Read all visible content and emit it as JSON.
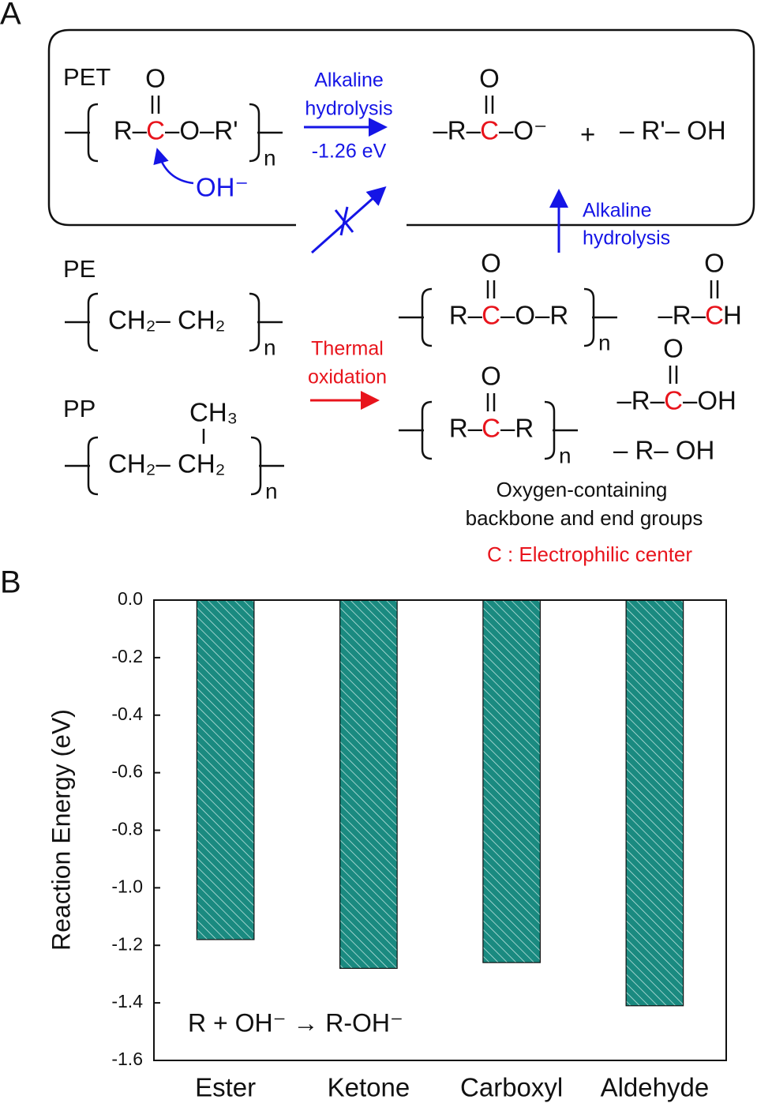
{
  "panel_a": {
    "label": "A",
    "pet": {
      "label": "PET",
      "chain": [
        "R–",
        "C",
        "–O–R'"
      ],
      "carbonyl": "O",
      "repeat": "n",
      "attack": "OH⁻"
    },
    "hydrolysis": {
      "lines": [
        "Alkaline",
        "hydrolysis"
      ],
      "energy": "-1.26 eV"
    },
    "products": {
      "carboxylate": [
        "–R–",
        "C",
        "–O⁻"
      ],
      "carbonyl": "O",
      "plus": "+",
      "alcohol": "– R'– OH"
    },
    "pe": {
      "label": "PE",
      "chain": "CH₂– CH₂",
      "repeat": "n"
    },
    "pp": {
      "label": "PP",
      "chain": "CH₂– CH₂",
      "methyl": "CH₃",
      "repeat": "n"
    },
    "oxidation": {
      "lines": [
        "Thermal",
        "oxidation"
      ]
    },
    "second_hydrolysis": {
      "lines": [
        "Alkaline",
        "hydrolysis"
      ]
    },
    "oxidized": {
      "ester": {
        "chain": [
          "R–",
          "C",
          "–O–R"
        ],
        "carbonyl": "O",
        "repeat": "n"
      },
      "aldehyde": {
        "chain": [
          "–R–",
          "C",
          "H"
        ],
        "carbonyl": "O"
      },
      "carboxyl": {
        "chain": [
          "–R–",
          "C",
          "–OH"
        ],
        "carbonyl": "O"
      },
      "ketone": {
        "chain": [
          "R–",
          "C",
          "–R"
        ],
        "carbonyl": "O",
        "repeat": "n"
      },
      "alcohol": "– R– OH",
      "caption": [
        "Oxygen-containing",
        "backbone and end groups"
      ],
      "legend": "C : Electrophilic center"
    }
  },
  "chart_data": {
    "type": "bar",
    "label": "B",
    "ylabel": "Reaction Energy (eV)",
    "annotation": "R + OH⁻ → R-OH⁻",
    "categories": [
      "Ester",
      "Ketone",
      "Carboxyl",
      "Aldehyde"
    ],
    "values": [
      -1.18,
      -1.28,
      -1.26,
      -1.41
    ],
    "color": "#1a8a80",
    "ylim": [
      -1.6,
      0
    ],
    "yticks": [
      {
        "value": 0,
        "label": "0.0"
      },
      -0.2,
      -0.4,
      -0.6,
      -0.8,
      {
        "value": -1,
        "label": "-1.0"
      },
      -1.2,
      -1.4,
      -1.6
    ]
  }
}
